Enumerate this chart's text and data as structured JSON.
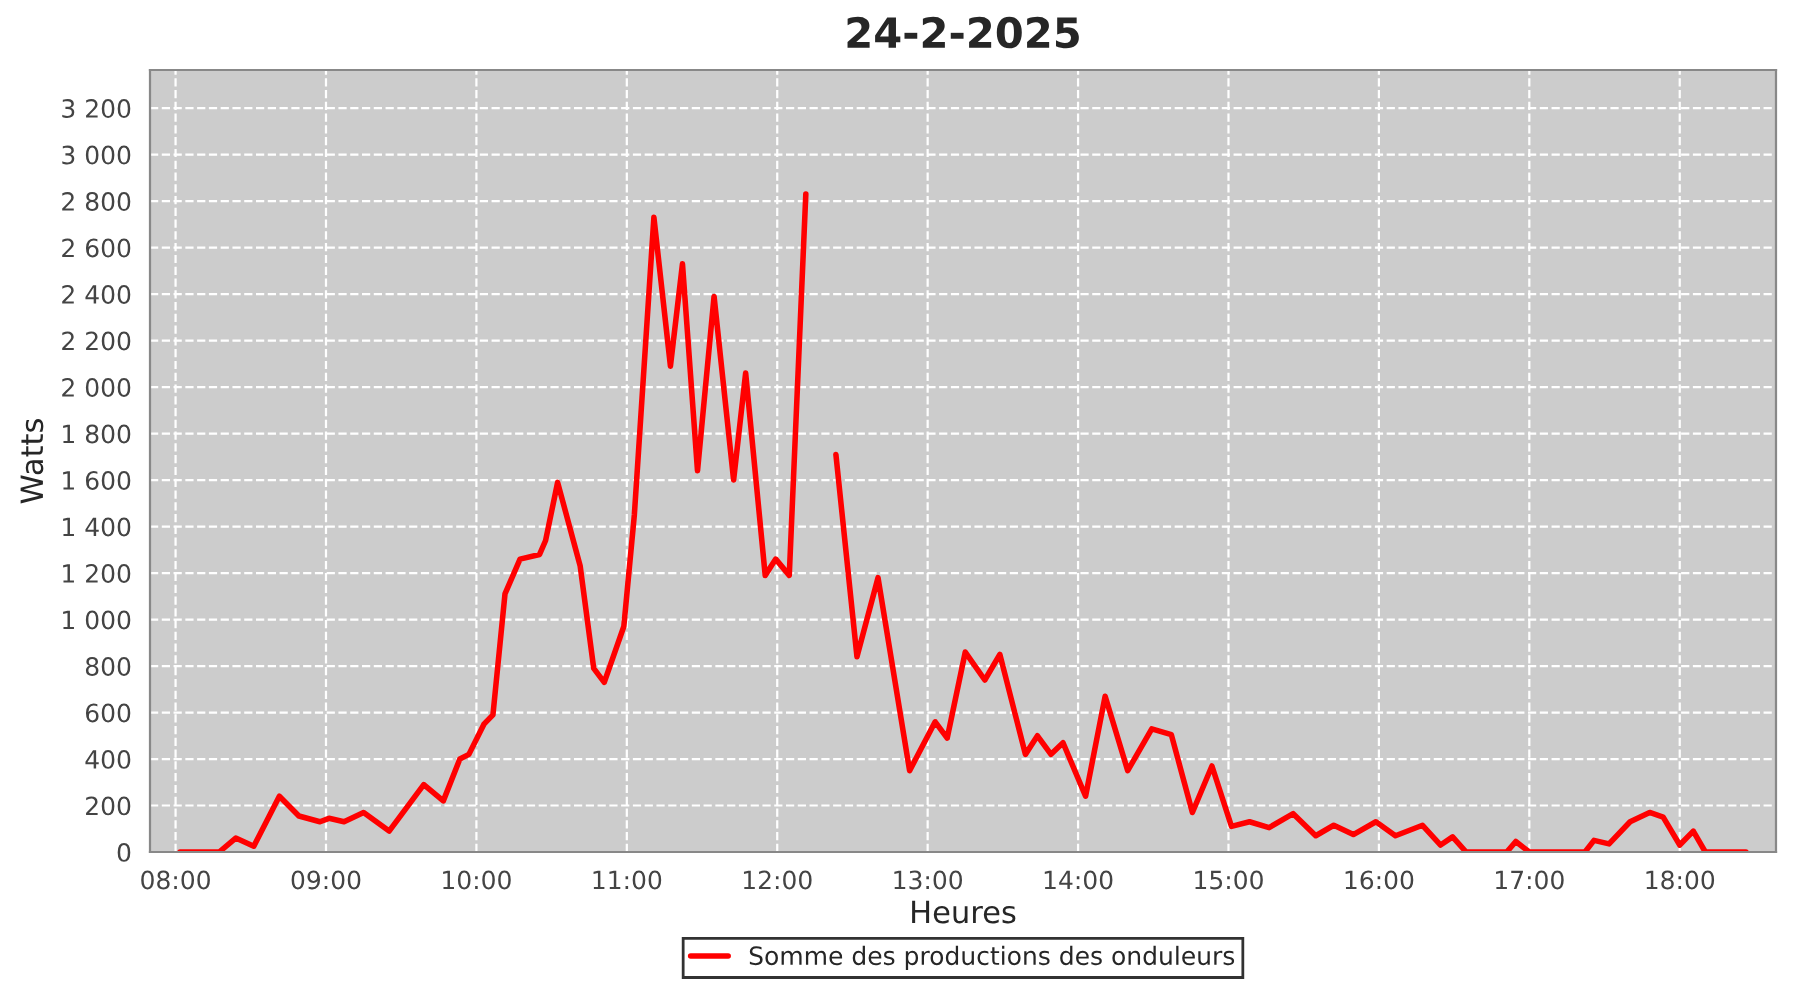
{
  "chart_data": {
    "type": "line",
    "title": "24-2-2025",
    "xlabel": "Heures",
    "ylabel": "Watts",
    "xlim": [
      7.83,
      18.64
    ],
    "xticks": [
      {
        "value": 8,
        "label": "08:00"
      },
      {
        "value": 9,
        "label": "09:00"
      },
      {
        "value": 10,
        "label": "10:00"
      },
      {
        "value": 11,
        "label": "11:00"
      },
      {
        "value": 12,
        "label": "12:00"
      },
      {
        "value": 13,
        "label": "13:00"
      },
      {
        "value": 14,
        "label": "14:00"
      },
      {
        "value": 15,
        "label": "15:00"
      },
      {
        "value": 16,
        "label": "16:00"
      },
      {
        "value": 17,
        "label": "17:00"
      },
      {
        "value": 18,
        "label": "18:00"
      }
    ],
    "ylim": [
      0,
      3364
    ],
    "yticks": [
      0,
      200,
      400,
      600,
      800,
      {
        "value": 1000,
        "label": "1 000"
      },
      {
        "value": 1200,
        "label": "1 200"
      },
      {
        "value": 1400,
        "label": "1 400"
      },
      {
        "value": 1600,
        "label": "1 600"
      },
      {
        "value": 1800,
        "label": "1 800"
      },
      {
        "value": 2000,
        "label": "2 000"
      },
      {
        "value": 2200,
        "label": "2 200"
      },
      {
        "value": 2400,
        "label": "2 400"
      },
      {
        "value": 2600,
        "label": "2 600"
      },
      {
        "value": 2800,
        "label": "2 800"
      },
      {
        "value": 3000,
        "label": "3 000"
      },
      {
        "value": 3200,
        "label": "3 200"
      }
    ],
    "grid": true,
    "legend": "bottom",
    "marker": "none",
    "line_style": "solid",
    "series": [
      {
        "name": "Somme des productions des onduleurs",
        "color": "#ff0000",
        "x": [
          8.03,
          8.29,
          8.4,
          8.52,
          8.69,
          8.82,
          8.96,
          9.02,
          9.12,
          9.25,
          9.42,
          9.65,
          9.78,
          9.89,
          9.95,
          10.05,
          10.11,
          10.19,
          10.29,
          10.42,
          10.46,
          10.54,
          10.69,
          10.78,
          10.85,
          10.98,
          11.05,
          11.18,
          11.29,
          11.37,
          11.47,
          11.58,
          11.71,
          11.79,
          11.92,
          11.99,
          12.08,
          12.19,
          12.24,
          12.29,
          12.39,
          12.53,
          12.67,
          12.88,
          13.05,
          13.13,
          13.25,
          13.38,
          13.48,
          13.65,
          13.73,
          13.82,
          13.9,
          14.05,
          14.18,
          14.33,
          14.49,
          14.62,
          14.76,
          14.89,
          15.02,
          15.14,
          15.27,
          15.43,
          15.58,
          15.7,
          15.83,
          15.98,
          16.11,
          16.29,
          16.41,
          16.49,
          16.58,
          16.85,
          16.91,
          17.0,
          17.37,
          17.43,
          17.53,
          17.67,
          17.8,
          17.89,
          18.0,
          18.09,
          18.17,
          18.44
        ],
        "values": [
          0,
          0,
          60,
          25,
          240,
          155,
          130,
          145,
          130,
          170,
          90,
          290,
          220,
          400,
          420,
          550,
          590,
          1110,
          1260,
          1280,
          1340,
          1590,
          1230,
          790,
          730,
          970,
          1450,
          2730,
          2090,
          2530,
          1640,
          2390,
          1600,
          2060,
          1190,
          1260,
          1190,
          2830,
          null,
          null,
          1710,
          840,
          1180,
          350,
          560,
          490,
          860,
          740,
          850,
          420,
          500,
          420,
          470,
          240,
          670,
          350,
          530,
          505,
          170,
          370,
          110,
          130,
          105,
          165,
          70,
          115,
          75,
          130,
          70,
          115,
          30,
          65,
          0,
          0,
          45,
          0,
          0,
          50,
          35,
          130,
          170,
          150,
          30,
          90,
          0,
          0
        ]
      }
    ]
  }
}
